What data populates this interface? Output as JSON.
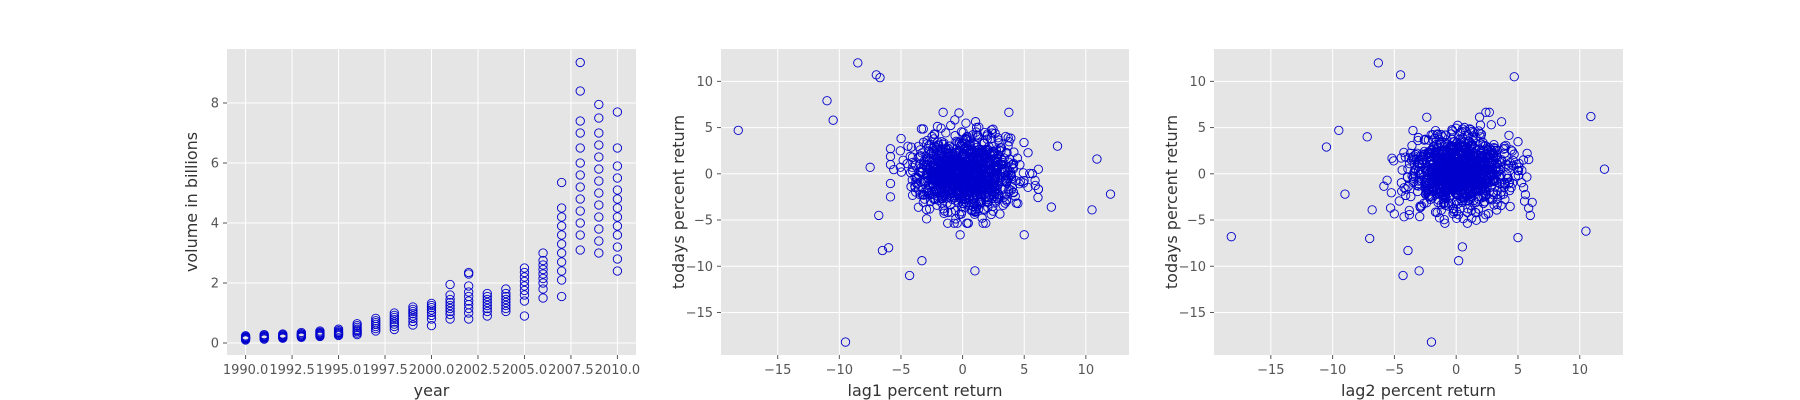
{
  "chart_data": [
    {
      "type": "scatter",
      "xlabel": "year",
      "ylabel": "volume in billions",
      "xlim": [
        1989.0,
        2011.0
      ],
      "ylim": [
        -0.4,
        9.8
      ],
      "xticks": [
        1990.0,
        1992.5,
        1995.0,
        1997.5,
        2000.0,
        2002.5,
        2005.0,
        2007.5,
        2010.0
      ],
      "xtick_labels": [
        "1990.0",
        "1992.5",
        "1995.0",
        "1997.5",
        "2000.0",
        "2002.5",
        "2005.0",
        "2007.5",
        "2010.0"
      ],
      "yticks": [
        0,
        2,
        4,
        6,
        8
      ],
      "ytick_labels": [
        "0",
        "2",
        "4",
        "6",
        "8"
      ],
      "grid": true,
      "marker_color": "#0000cc",
      "background": "#e5e5e5",
      "points": {
        "groups": [
          {
            "x": 1990,
            "y": [
              0.1,
              0.13,
              0.15,
              0.17,
              0.19,
              0.21,
              0.24
            ]
          },
          {
            "x": 1991,
            "y": [
              0.13,
              0.16,
              0.18,
              0.2,
              0.22,
              0.25,
              0.28
            ]
          },
          {
            "x": 1992,
            "y": [
              0.16,
              0.18,
              0.2,
              0.22,
              0.24,
              0.27,
              0.3
            ]
          },
          {
            "x": 1993,
            "y": [
              0.19,
              0.21,
              0.23,
              0.26,
              0.28,
              0.31,
              0.35
            ]
          },
          {
            "x": 1994,
            "y": [
              0.22,
              0.25,
              0.27,
              0.3,
              0.33,
              0.36,
              0.4
            ]
          },
          {
            "x": 1995,
            "y": [
              0.25,
              0.28,
              0.31,
              0.34,
              0.37,
              0.41,
              0.46
            ]
          },
          {
            "x": 1996,
            "y": [
              0.28,
              0.33,
              0.38,
              0.42,
              0.46,
              0.52,
              0.58,
              0.64
            ]
          },
          {
            "x": 1997,
            "y": [
              0.4,
              0.48,
              0.55,
              0.62,
              0.68,
              0.74,
              0.82
            ]
          },
          {
            "x": 1998,
            "y": [
              0.45,
              0.55,
              0.63,
              0.7,
              0.78,
              0.85,
              0.92,
              1.0
            ]
          },
          {
            "x": 1999,
            "y": [
              0.6,
              0.72,
              0.82,
              0.9,
              0.98,
              1.05,
              1.12,
              1.2
            ]
          },
          {
            "x": 2000,
            "y": [
              0.58,
              0.8,
              0.92,
              1.02,
              1.1,
              1.18,
              1.25,
              1.32
            ]
          },
          {
            "x": 2001,
            "y": [
              0.8,
              0.95,
              1.05,
              1.15,
              1.25,
              1.35,
              1.45,
              1.6,
              1.95
            ]
          },
          {
            "x": 2002,
            "y": [
              0.8,
              1.0,
              1.15,
              1.28,
              1.4,
              1.55,
              1.7,
              1.9,
              2.3,
              2.35
            ]
          },
          {
            "x": 2003,
            "y": [
              0.9,
              1.05,
              1.15,
              1.25,
              1.35,
              1.45,
              1.55,
              1.65
            ]
          },
          {
            "x": 2004,
            "y": [
              1.05,
              1.15,
              1.25,
              1.35,
              1.45,
              1.55,
              1.65,
              1.8
            ]
          },
          {
            "x": 2005,
            "y": [
              0.9,
              1.4,
              1.6,
              1.75,
              1.9,
              2.05,
              2.2,
              2.35,
              2.5
            ]
          },
          {
            "x": 2006,
            "y": [
              1.5,
              1.8,
              2.0,
              2.15,
              2.3,
              2.45,
              2.6,
              2.75,
              3.0
            ]
          },
          {
            "x": 2007,
            "y": [
              1.55,
              2.1,
              2.4,
              2.7,
              3.0,
              3.3,
              3.6,
              3.9,
              4.2,
              4.5,
              5.35
            ]
          },
          {
            "x": 2008,
            "y": [
              3.1,
              3.6,
              4.0,
              4.4,
              4.8,
              5.2,
              5.6,
              6.0,
              6.5,
              7.0,
              7.4,
              8.4,
              9.35
            ]
          },
          {
            "x": 2009,
            "y": [
              3.0,
              3.4,
              3.8,
              4.2,
              4.6,
              5.0,
              5.4,
              5.8,
              6.2,
              6.6,
              7.0,
              7.5,
              7.95
            ]
          },
          {
            "x": 2010,
            "y": [
              2.4,
              2.8,
              3.2,
              3.6,
              3.9,
              4.2,
              4.5,
              4.8,
              5.1,
              5.5,
              5.9,
              6.5,
              7.7
            ]
          }
        ]
      }
    },
    {
      "type": "scatter",
      "xlabel": "lag1 percent return",
      "ylabel": "todays percent return",
      "xlim": [
        -19.6,
        13.5
      ],
      "ylim": [
        -19.6,
        13.5
      ],
      "xticks": [
        -15,
        -10,
        -5,
        0,
        5,
        10
      ],
      "xtick_labels": [
        "−15",
        "−10",
        "−5",
        "0",
        "5",
        "10"
      ],
      "yticks": [
        -15,
        -10,
        -5,
        0,
        5,
        10
      ],
      "ytick_labels": [
        "−15",
        "−10",
        "−5",
        "0",
        "5",
        "10"
      ],
      "grid": true,
      "marker_color": "#0000cc",
      "background": "#e5e5e5",
      "points": {
        "cloud": {
          "n": 1089,
          "center": [
            0.15,
            0.15
          ],
          "sd": [
            2.0,
            2.0
          ],
          "seed": 7
        },
        "outliers": [
          {
            "x": -18.2,
            "y": 4.7
          },
          {
            "x": -11.0,
            "y": 7.9
          },
          {
            "x": -10.5,
            "y": 5.8
          },
          {
            "x": -8.5,
            "y": 12.0
          },
          {
            "x": -7.0,
            "y": 10.7
          },
          {
            "x": -6.7,
            "y": 10.4
          },
          {
            "x": -9.5,
            "y": -18.2
          },
          {
            "x": 1.0,
            "y": -10.5
          },
          {
            "x": -4.3,
            "y": -11.0
          },
          {
            "x": -3.3,
            "y": -9.4
          },
          {
            "x": 10.5,
            "y": -3.9
          },
          {
            "x": 12.0,
            "y": -2.2
          },
          {
            "x": 10.9,
            "y": 1.6
          },
          {
            "x": -7.5,
            "y": 0.7
          },
          {
            "x": -6.8,
            "y": -4.5
          },
          {
            "x": -6.5,
            "y": -8.3
          },
          {
            "x": 7.7,
            "y": 3.0
          },
          {
            "x": 7.2,
            "y": -3.6
          },
          {
            "x": 5.0,
            "y": -6.6
          },
          {
            "x": -0.2,
            "y": -6.6
          },
          {
            "x": -6.0,
            "y": -8.0
          }
        ]
      }
    },
    {
      "type": "scatter",
      "xlabel": "lag2 percent return",
      "ylabel": "todays percent return",
      "xlim": [
        -19.6,
        13.5
      ],
      "ylim": [
        -19.6,
        13.5
      ],
      "xticks": [
        -15,
        -10,
        -5,
        0,
        5,
        10
      ],
      "xtick_labels": [
        "−15",
        "−10",
        "−5",
        "0",
        "5",
        "10"
      ],
      "yticks": [
        -15,
        -10,
        -5,
        0,
        5,
        10
      ],
      "ytick_labels": [
        "−15",
        "−10",
        "−5",
        "0",
        "5",
        "10"
      ],
      "grid": true,
      "marker_color": "#0000cc",
      "background": "#e5e5e5",
      "points": {
        "cloud": {
          "n": 1089,
          "center": [
            0.15,
            0.15
          ],
          "sd": [
            2.0,
            2.0
          ],
          "seed": 23
        },
        "outliers": [
          {
            "x": -18.2,
            "y": -6.8
          },
          {
            "x": -10.5,
            "y": 2.9
          },
          {
            "x": -9.5,
            "y": 4.7
          },
          {
            "x": -6.3,
            "y": 12.0
          },
          {
            "x": -4.5,
            "y": 10.7
          },
          {
            "x": 4.7,
            "y": 10.5
          },
          {
            "x": -2.0,
            "y": -18.2
          },
          {
            "x": -4.3,
            "y": -11.0
          },
          {
            "x": -3.0,
            "y": -10.5
          },
          {
            "x": 0.2,
            "y": -9.4
          },
          {
            "x": 10.9,
            "y": 6.2
          },
          {
            "x": 12.0,
            "y": 0.5
          },
          {
            "x": 10.5,
            "y": -6.2
          },
          {
            "x": -7.0,
            "y": -7.0
          },
          {
            "x": -3.9,
            "y": -8.3
          },
          {
            "x": -6.8,
            "y": -3.9
          },
          {
            "x": 5.0,
            "y": -6.9
          },
          {
            "x": 6.0,
            "y": -4.5
          },
          {
            "x": -9.0,
            "y": -2.2
          },
          {
            "x": -7.2,
            "y": 4.0
          },
          {
            "x": 0.5,
            "y": -7.9
          }
        ]
      }
    }
  ]
}
